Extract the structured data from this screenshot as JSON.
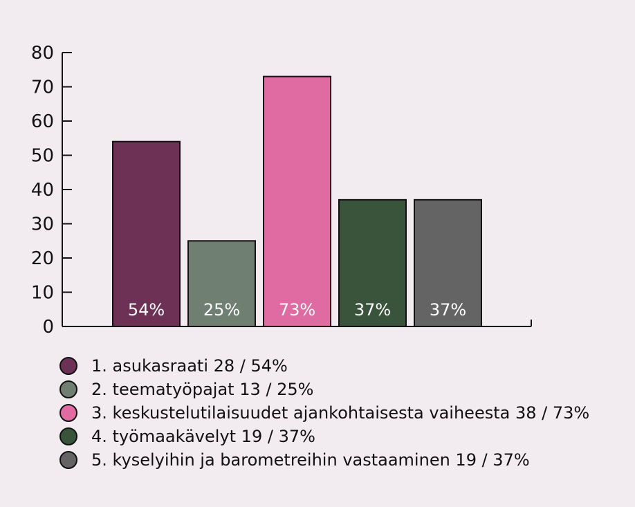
{
  "chart_data": {
    "type": "bar",
    "categories": [
      "1",
      "2",
      "3",
      "4",
      "5"
    ],
    "values": [
      54,
      25,
      73,
      37,
      37
    ],
    "data_labels": [
      "54%",
      "25%",
      "73%",
      "37%",
      "37%"
    ],
    "colors": [
      "#6d3156",
      "#6f7f72",
      "#e06ba2",
      "#3a543b",
      "#646464"
    ],
    "ylim": [
      0,
      80
    ],
    "yticks": [
      0,
      10,
      20,
      30,
      40,
      50,
      60,
      70,
      80
    ],
    "grid": false,
    "legend_position": "bottom-left",
    "legend": [
      "1. asukasraati 28 / 54%",
      "2. teematyöpajat 13 / 25%",
      "3. keskustelutilaisuudet ajankohtaisesta vaiheesta 38 / 73%",
      "4. työmaakävelyt 19 / 37%",
      "5. kyselyihin ja barometreihin vastaaminen 19 / 37%"
    ],
    "title": "",
    "xlabel": "",
    "ylabel": ""
  }
}
